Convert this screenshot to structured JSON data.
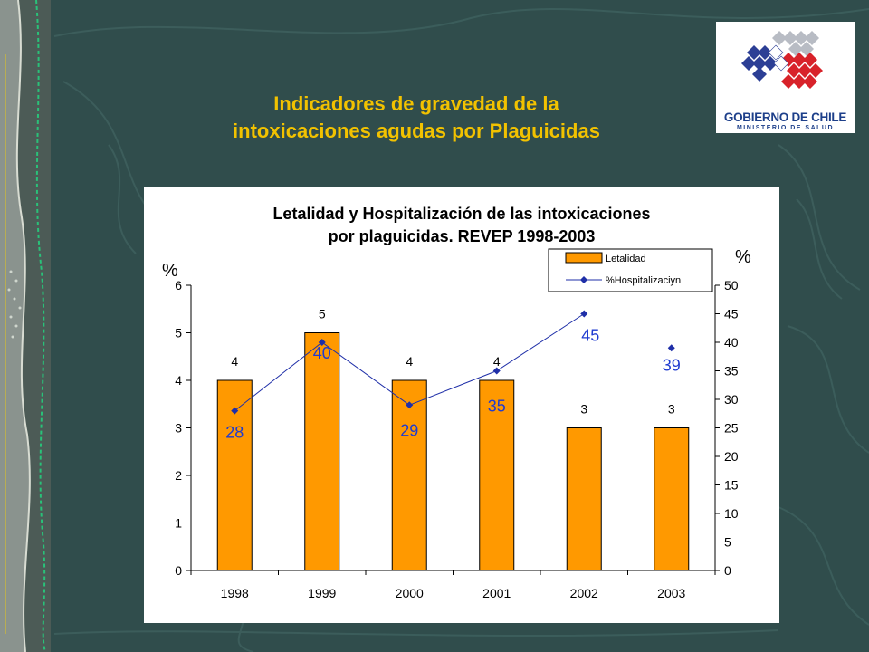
{
  "slide": {
    "title_line1": "Indicadores de gravedad de la",
    "title_line2": "intoxicaciones agudas por Plaguicidas"
  },
  "logo": {
    "name": "GOBIERNO DE CHILE",
    "subtitle": "MINISTERIO DE SALUD"
  },
  "colors": {
    "background": "#304d4c",
    "title": "#f2c200",
    "bar": "#ff9900",
    "line": "#1f2fa8",
    "line_label": "#1f3bd0"
  },
  "chart_data": {
    "type": "bar",
    "title_line1": "Letalidad y Hospitalización de las intoxicaciones",
    "title_line2": "por plaguicidas. REVEP 1998-2003",
    "categories": [
      "1998",
      "1999",
      "2000",
      "2001",
      "2002",
      "2003"
    ],
    "series": [
      {
        "name": "Letalidad",
        "type": "bar",
        "axis": "left",
        "values": [
          4,
          5,
          4,
          4,
          3,
          3
        ],
        "labels": [
          "4",
          "5",
          "4",
          "4",
          "3",
          "3"
        ]
      },
      {
        "name": "%Hospitalizaciyn",
        "type": "line",
        "axis": "right",
        "values": [
          28,
          40,
          29,
          35,
          45,
          39
        ],
        "labels": [
          "28",
          "40",
          "29",
          "35",
          "45",
          "39"
        ]
      }
    ],
    "ylabel": "%",
    "y2label": "%",
    "ylim": [
      0,
      6
    ],
    "y2lim": [
      0,
      50
    ],
    "yticks": [
      "0",
      "1",
      "2",
      "3",
      "4",
      "5",
      "6"
    ],
    "y2ticks": [
      "0",
      "5",
      "10",
      "15",
      "20",
      "25",
      "30",
      "35",
      "40",
      "45",
      "50"
    ],
    "legend_position": "top-right"
  }
}
